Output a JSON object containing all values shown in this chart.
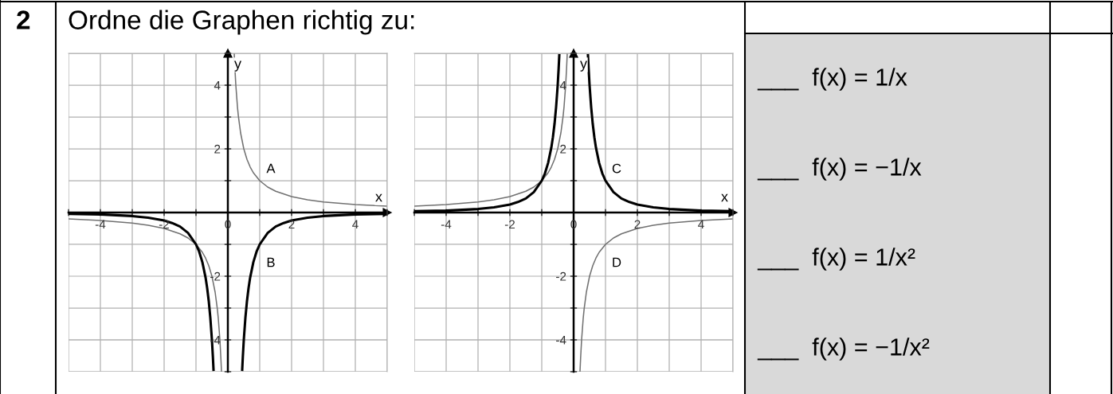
{
  "chart_data": [
    {
      "type": "line",
      "title": "Ordne die Graphen richtig zu:",
      "xlabel": "x",
      "ylabel": "y",
      "grid": true,
      "xlim": [
        -5,
        5
      ],
      "ylim": [
        -5,
        5
      ],
      "xticks": [
        {
          "value": -5,
          "label": null
        },
        -4,
        {
          "value": -3,
          "label": null
        },
        -2,
        {
          "value": -1,
          "label": null
        },
        0,
        {
          "value": 1,
          "label": null
        },
        2,
        {
          "value": 3,
          "label": null
        },
        4,
        {
          "value": 5,
          "label": null
        }
      ],
      "yticks": [
        {
          "value": -5,
          "label": null
        },
        -4,
        {
          "value": -3,
          "label": null
        },
        -2,
        {
          "value": -1,
          "label": null
        },
        {
          "value": 0,
          "label": null
        },
        {
          "value": 1,
          "label": null
        },
        2,
        {
          "value": 3,
          "label": null
        },
        4,
        {
          "value": 5,
          "label": null
        }
      ],
      "annotations": [
        "2",
        "A",
        "B"
      ],
      "series": [
        {
          "color": "#707070",
          "x": [
            -5,
            -4,
            -3,
            -2.5,
            -2,
            -1.5,
            -1.25,
            -1,
            -0.8,
            -0.7,
            -0.6,
            -0.5,
            -0.4,
            -0.33,
            -0.3,
            -0.25,
            -0.22,
            -0.2,
            0,
            0.2,
            0.22,
            0.25,
            0.3,
            0.33,
            0.4,
            0.5,
            0.6,
            0.7,
            0.8,
            1,
            1.25,
            1.5,
            2,
            2.5,
            3,
            4,
            5
          ],
          "values": [
            -0.2,
            -0.25,
            -0.33,
            -0.4,
            -0.5,
            -0.67,
            -0.8,
            -1,
            -1.25,
            -1.43,
            -1.67,
            -2,
            -2.5,
            -3.03,
            -3.33,
            -4,
            -4.55,
            -5,
            null,
            5,
            4.55,
            4,
            3.33,
            3.03,
            2.5,
            2,
            1.67,
            1.43,
            1.25,
            1,
            0.8,
            0.67,
            0.5,
            0.4,
            0.33,
            0.25,
            0.2
          ]
        },
        {
          "color": "#000000",
          "x": [
            -5,
            -4,
            -3,
            -2.5,
            -2,
            -1.75,
            -1.5,
            -1.25,
            -1,
            -0.9,
            -0.8,
            -0.7,
            -0.65,
            -0.6,
            -0.55,
            -0.5,
            -0.47,
            -0.45,
            0,
            0.45,
            0.47,
            0.5,
            0.55,
            0.6,
            0.65,
            0.7,
            0.8,
            0.9,
            1,
            1.25,
            1.5,
            1.75,
            2,
            2.5,
            3,
            4,
            5
          ],
          "values": [
            -0.04,
            -0.06,
            -0.11,
            -0.16,
            -0.25,
            -0.33,
            -0.44,
            -0.64,
            -1,
            -1.23,
            -1.56,
            -2.04,
            -2.37,
            -2.78,
            -3.31,
            -4,
            -4.53,
            -4.94,
            null,
            -4.94,
            -4.53,
            -4,
            -3.31,
            -2.78,
            -2.37,
            -2.04,
            -1.56,
            -1.23,
            -1,
            -0.64,
            -0.44,
            -0.33,
            -0.25,
            -0.16,
            -0.11,
            -0.06,
            -0.04
          ]
        }
      ]
    },
    {
      "type": "line",
      "xlabel": "x",
      "ylabel": "y",
      "grid": true,
      "xlim": [
        -5,
        5
      ],
      "ylim": [
        -5,
        5
      ],
      "xticks": [
        {
          "value": -5,
          "label": null
        },
        -4,
        {
          "value": -3,
          "label": null
        },
        -2,
        {
          "value": -1,
          "label": null
        },
        0,
        {
          "value": 1,
          "label": null
        },
        2,
        {
          "value": 3,
          "label": null
        },
        4,
        {
          "value": 5,
          "label": null
        }
      ],
      "yticks": [
        {
          "value": -5,
          "label": null
        },
        -4,
        {
          "value": -3,
          "label": null
        },
        -2,
        {
          "value": -1,
          "label": null
        },
        {
          "value": 0,
          "label": null
        },
        {
          "value": 1,
          "label": null
        },
        2,
        {
          "value": 3,
          "label": null
        },
        4,
        {
          "value": 5,
          "label": null
        }
      ],
      "annotations": [
        "C",
        "D"
      ],
      "series": [
        {
          "color": "#707070",
          "x": [
            -5,
            -4,
            -3,
            -2.5,
            -2,
            -1.5,
            -1.25,
            -1,
            -0.8,
            -0.7,
            -0.6,
            -0.5,
            -0.4,
            -0.33,
            -0.3,
            -0.25,
            -0.22,
            -0.2,
            0,
            0.2,
            0.22,
            0.25,
            0.3,
            0.33,
            0.4,
            0.5,
            0.6,
            0.7,
            0.8,
            1,
            1.25,
            1.5,
            2,
            2.5,
            3,
            4,
            5
          ],
          "values": [
            0.2,
            0.25,
            0.33,
            0.4,
            0.5,
            0.67,
            0.8,
            1,
            1.25,
            1.43,
            1.67,
            2,
            2.5,
            3.03,
            3.33,
            4,
            4.55,
            5,
            null,
            -5,
            -4.55,
            -4,
            -3.33,
            -3.03,
            -2.5,
            -2,
            -1.67,
            -1.43,
            -1.25,
            -1,
            -0.8,
            -0.67,
            -0.5,
            -0.4,
            -0.33,
            -0.25,
            -0.2
          ]
        },
        {
          "color": "#000000",
          "x": [
            -5,
            -4,
            -3,
            -2.5,
            -2,
            -1.75,
            -1.5,
            -1.25,
            -1,
            -0.9,
            -0.8,
            -0.7,
            -0.65,
            -0.6,
            -0.55,
            -0.5,
            -0.47,
            -0.45,
            0,
            0.45,
            0.47,
            0.5,
            0.55,
            0.6,
            0.65,
            0.7,
            0.8,
            0.9,
            1,
            1.25,
            1.5,
            1.75,
            2,
            2.5,
            3,
            4,
            5
          ],
          "values": [
            0.04,
            0.06,
            0.11,
            0.16,
            0.25,
            0.33,
            0.44,
            0.64,
            1,
            1.23,
            1.56,
            2.04,
            2.37,
            2.78,
            3.31,
            4,
            4.53,
            4.94,
            null,
            4.94,
            4.53,
            4,
            3.31,
            2.78,
            2.37,
            2.04,
            1.56,
            1.23,
            1,
            0.64,
            0.44,
            0.33,
            0.25,
            0.16,
            0.11,
            0.06,
            0.04
          ]
        }
      ]
    },
    {
      "type": "other",
      "color": "#d9d9d9",
      "annotations": [
        "___  f(x) = 1/x",
        "___  f(x) = −1/x",
        "___  f(x) = 1/x²",
        "___  f(x) = −1/x²"
      ]
    }
  ]
}
